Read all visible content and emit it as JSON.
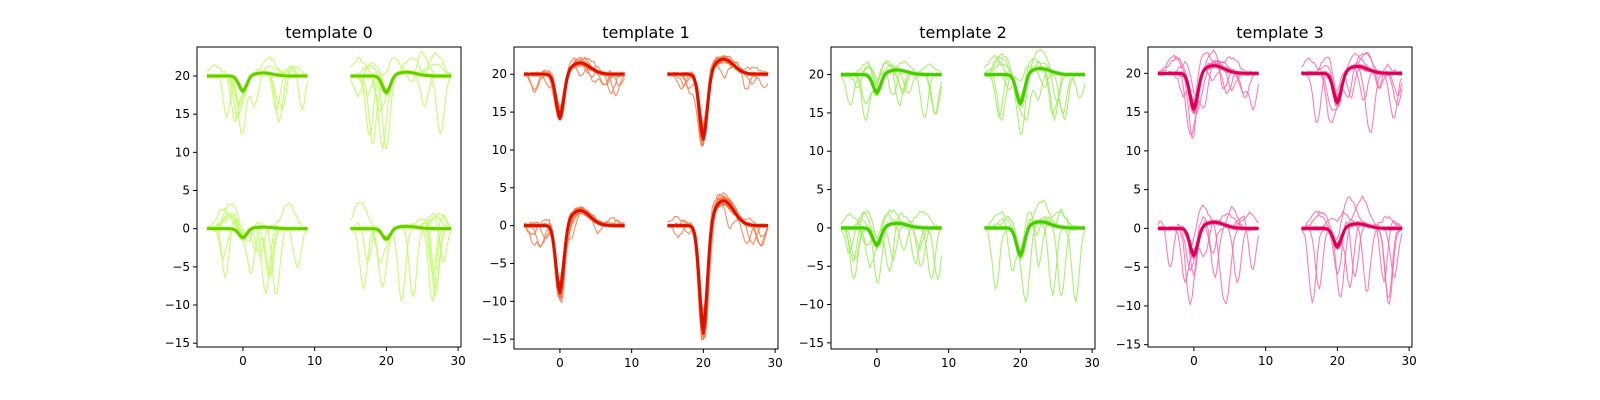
{
  "chart_data": [
    {
      "type": "line",
      "title": "template 0",
      "xlim": [
        -6.4,
        30.4
      ],
      "ylim": [
        -15.5,
        23.8
      ],
      "xticks": [
        0,
        10,
        20,
        30
      ],
      "yticks": [
        -15,
        -10,
        -5,
        0,
        5,
        10,
        15,
        20
      ],
      "colors": {
        "mean": "#66cc00",
        "trace": "#bbff55"
      },
      "channels": [
        {
          "x_offset": 0,
          "baseline": 20,
          "trough_depth": 2.0,
          "trough_x": 0,
          "peak": 0.4,
          "spread": 7
        },
        {
          "x_offset": 20,
          "baseline": 20,
          "trough_depth": 2.2,
          "trough_x": 0,
          "peak": 0.5,
          "spread": 9
        },
        {
          "x_offset": 0,
          "baseline": 0,
          "trough_depth": 1.2,
          "trough_x": 0,
          "peak": 0.2,
          "spread": 9
        },
        {
          "x_offset": 20,
          "baseline": 0,
          "trough_depth": 1.4,
          "trough_x": 0,
          "peak": 0.3,
          "spread": 13
        }
      ]
    },
    {
      "type": "line",
      "title": "template 1",
      "xlim": [
        -6.4,
        30.4
      ],
      "ylim": [
        -16.3,
        23.6
      ],
      "xticks": [
        0,
        10,
        20,
        30
      ],
      "yticks": [
        -15,
        -10,
        -5,
        0,
        5,
        10,
        15,
        20
      ],
      "colors": {
        "mean": "#dd1100",
        "trace": "#ff7744"
      },
      "channels": [
        {
          "x_offset": 0,
          "baseline": 20,
          "trough_depth": 5.8,
          "trough_x": 0,
          "peak": 1.5,
          "spread": 3
        },
        {
          "x_offset": 20,
          "baseline": 20,
          "trough_depth": 8.5,
          "trough_x": 0,
          "peak": 2.0,
          "spread": 3
        },
        {
          "x_offset": 0,
          "baseline": 0,
          "trough_depth": 8.8,
          "trough_x": 0,
          "peak": 2.0,
          "spread": 3
        },
        {
          "x_offset": 20,
          "baseline": 0,
          "trough_depth": 14.0,
          "trough_x": 0,
          "peak": 3.3,
          "spread": 3
        }
      ]
    },
    {
      "type": "line",
      "title": "template 2",
      "xlim": [
        -6.4,
        30.4
      ],
      "ylim": [
        -15.8,
        23.6
      ],
      "xticks": [
        0,
        10,
        20,
        30
      ],
      "yticks": [
        -15,
        -10,
        -5,
        0,
        5,
        10,
        15,
        20
      ],
      "colors": {
        "mean": "#44cc00",
        "trace": "#99ee55"
      },
      "channels": [
        {
          "x_offset": 0,
          "baseline": 20,
          "trough_depth": 2.4,
          "trough_x": 0,
          "peak": 0.6,
          "spread": 6
        },
        {
          "x_offset": 20,
          "baseline": 20,
          "trough_depth": 3.8,
          "trough_x": 0,
          "peak": 0.8,
          "spread": 7
        },
        {
          "x_offset": 0,
          "baseline": 0,
          "trough_depth": 2.3,
          "trough_x": 0,
          "peak": 0.6,
          "spread": 7
        },
        {
          "x_offset": 20,
          "baseline": 0,
          "trough_depth": 3.6,
          "trough_x": 0,
          "peak": 0.8,
          "spread": 10
        }
      ]
    },
    {
      "type": "line",
      "title": "template 3",
      "xlim": [
        -6.4,
        30.4
      ],
      "ylim": [
        -15.3,
        23.4
      ],
      "xticks": [
        0,
        10,
        20,
        30
      ],
      "yticks": [
        -15,
        -10,
        -5,
        0,
        5,
        10,
        15,
        20
      ],
      "colors": {
        "mean": "#dd0055",
        "trace": "#ff66aa"
      },
      "channels": [
        {
          "x_offset": 0,
          "baseline": 20,
          "trough_depth": 4.6,
          "trough_x": 0,
          "peak": 1.0,
          "spread": 6
        },
        {
          "x_offset": 20,
          "baseline": 20,
          "trough_depth": 3.8,
          "trough_x": 0,
          "peak": 0.9,
          "spread": 7
        },
        {
          "x_offset": 0,
          "baseline": 0,
          "trough_depth": 3.5,
          "trough_x": 0,
          "peak": 0.8,
          "spread": 8
        },
        {
          "x_offset": 20,
          "baseline": 0,
          "trough_depth": 2.4,
          "trough_x": 0,
          "peak": 0.6,
          "spread": 13
        }
      ]
    }
  ]
}
